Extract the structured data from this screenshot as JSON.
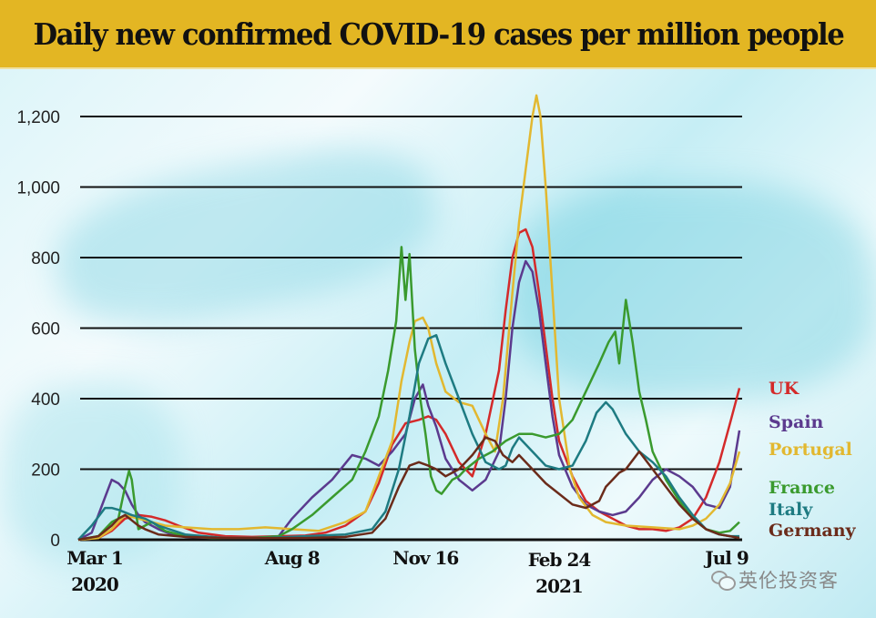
{
  "title": "Daily new confirmed COVID-19 cases per million people",
  "watermark": "英伦投资客",
  "chart_data": {
    "type": "line",
    "title": "Daily new confirmed COVID-19 cases per million people",
    "xlabel": "",
    "ylabel": "",
    "ylim": [
      0,
      1200
    ],
    "xlim": [
      0,
      495
    ],
    "x_unit": "days since Mar 1 2020",
    "y_ticks": [
      {
        "value": 0,
        "label": "0"
      },
      {
        "value": 200,
        "label": "200"
      },
      {
        "value": 400,
        "label": "400"
      },
      {
        "value": 600,
        "label": "600"
      },
      {
        "value": 800,
        "label": "800"
      },
      {
        "value": 1000,
        "label": "1,000"
      },
      {
        "value": 1200,
        "label": "1,200"
      }
    ],
    "x_ticks": [
      {
        "value": 0,
        "label": "Mar 1",
        "sub": "2020"
      },
      {
        "value": 160,
        "label": "Aug 8",
        "sub": ""
      },
      {
        "value": 260,
        "label": "Nov 16",
        "sub": ""
      },
      {
        "value": 360,
        "label": "Feb 24",
        "sub": "2021"
      },
      {
        "value": 495,
        "label": "Jul 9",
        "sub": ""
      }
    ],
    "grid": true,
    "legend_position": "right",
    "series": [
      {
        "name": "UK",
        "color": "#d42a2a",
        "x": [
          0,
          15,
          25,
          35,
          45,
          55,
          65,
          75,
          90,
          110,
          130,
          150,
          170,
          185,
          200,
          215,
          225,
          235,
          245,
          255,
          262,
          268,
          275,
          285,
          295,
          305,
          315,
          320,
          325,
          330,
          335,
          340,
          345,
          350,
          355,
          360,
          370,
          380,
          390,
          400,
          410,
          420,
          430,
          440,
          450,
          460,
          470,
          480,
          488,
          495
        ],
        "y": [
          0,
          5,
          25,
          60,
          70,
          65,
          55,
          40,
          20,
          10,
          8,
          10,
          12,
          20,
          40,
          80,
          160,
          270,
          330,
          340,
          350,
          340,
          300,
          220,
          180,
          300,
          480,
          650,
          800,
          870,
          880,
          830,
          700,
          550,
          400,
          280,
          180,
          110,
          80,
          60,
          40,
          30,
          30,
          25,
          35,
          60,
          120,
          220,
          330,
          430
        ]
      },
      {
        "name": "Spain",
        "color": "#5b3a8e",
        "x": [
          0,
          10,
          20,
          25,
          30,
          35,
          40,
          45,
          50,
          55,
          60,
          70,
          80,
          100,
          130,
          150,
          160,
          175,
          190,
          205,
          215,
          225,
          235,
          245,
          252,
          258,
          262,
          268,
          275,
          285,
          295,
          305,
          315,
          320,
          325,
          330,
          335,
          340,
          345,
          350,
          355,
          360,
          370,
          380,
          390,
          400,
          410,
          420,
          430,
          440,
          450,
          460,
          470,
          480,
          488,
          495
        ],
        "y": [
          0,
          20,
          120,
          170,
          160,
          140,
          100,
          70,
          50,
          40,
          30,
          15,
          8,
          5,
          5,
          10,
          60,
          120,
          170,
          240,
          230,
          210,
          250,
          300,
          400,
          440,
          380,
          320,
          230,
          170,
          140,
          170,
          250,
          400,
          600,
          730,
          790,
          760,
          650,
          500,
          350,
          240,
          150,
          100,
          80,
          70,
          80,
          120,
          170,
          200,
          180,
          150,
          100,
          90,
          150,
          310
        ]
      },
      {
        "name": "Portugal",
        "color": "#e2b830",
        "x": [
          0,
          15,
          25,
          35,
          45,
          55,
          65,
          80,
          100,
          120,
          140,
          160,
          180,
          200,
          215,
          225,
          235,
          242,
          248,
          252,
          258,
          262,
          268,
          275,
          285,
          295,
          305,
          312,
          318,
          325,
          330,
          335,
          340,
          343,
          346,
          350,
          355,
          360,
          368,
          375,
          385,
          395,
          410,
          430,
          450,
          460,
          470,
          480,
          488,
          495
        ],
        "y": [
          0,
          5,
          30,
          70,
          60,
          50,
          40,
          35,
          30,
          30,
          35,
          30,
          25,
          50,
          80,
          180,
          280,
          450,
          560,
          620,
          630,
          600,
          500,
          420,
          390,
          380,
          300,
          250,
          400,
          700,
          900,
          1050,
          1200,
          1260,
          1200,
          1000,
          700,
          400,
          200,
          120,
          70,
          50,
          40,
          35,
          30,
          40,
          60,
          100,
          160,
          250
        ]
      },
      {
        "name": "France",
        "color": "#3a9a2e",
        "x": [
          0,
          15,
          25,
          30,
          35,
          38,
          40,
          43,
          45,
          50,
          55,
          65,
          80,
          100,
          130,
          150,
          160,
          175,
          190,
          205,
          215,
          225,
          232,
          238,
          242,
          245,
          248,
          252,
          256,
          260,
          264,
          268,
          272,
          276,
          280,
          285,
          290,
          300,
          310,
          320,
          330,
          340,
          350,
          360,
          370,
          380,
          390,
          397,
          402,
          405,
          410,
          415,
          420,
          425,
          430,
          440,
          450,
          460,
          470,
          480,
          488,
          495
        ],
        "y": [
          0,
          10,
          50,
          60,
          150,
          195,
          170,
          80,
          30,
          40,
          50,
          25,
          10,
          5,
          5,
          10,
          30,
          70,
          120,
          170,
          250,
          350,
          480,
          620,
          830,
          680,
          810,
          540,
          400,
          300,
          180,
          140,
          130,
          150,
          170,
          180,
          200,
          230,
          250,
          280,
          300,
          300,
          290,
          300,
          340,
          420,
          500,
          560,
          590,
          500,
          680,
          560,
          420,
          340,
          250,
          170,
          110,
          60,
          30,
          20,
          25,
          50
        ]
      },
      {
        "name": "Italy",
        "color": "#1e7b82",
        "x": [
          0,
          10,
          20,
          25,
          30,
          40,
          50,
          60,
          80,
          110,
          140,
          170,
          200,
          220,
          230,
          240,
          248,
          255,
          262,
          268,
          275,
          285,
          295,
          305,
          315,
          320,
          325,
          330,
          340,
          350,
          360,
          370,
          380,
          388,
          395,
          400,
          410,
          420,
          430,
          440,
          450,
          460,
          470,
          480,
          488,
          495
        ],
        "y": [
          0,
          40,
          90,
          90,
          85,
          70,
          60,
          40,
          15,
          5,
          5,
          10,
          15,
          30,
          80,
          200,
          350,
          500,
          570,
          580,
          500,
          400,
          300,
          220,
          200,
          210,
          260,
          290,
          250,
          210,
          200,
          210,
          280,
          360,
          390,
          370,
          300,
          250,
          220,
          180,
          120,
          70,
          30,
          15,
          10,
          10
        ]
      },
      {
        "name": "Germany",
        "color": "#6b2b1a",
        "x": [
          0,
          15,
          25,
          30,
          35,
          40,
          45,
          50,
          60,
          80,
          110,
          140,
          170,
          200,
          220,
          230,
          240,
          248,
          255,
          262,
          268,
          275,
          285,
          295,
          305,
          312,
          318,
          325,
          330,
          340,
          350,
          360,
          370,
          380,
          390,
          395,
          400,
          405,
          410,
          420,
          430,
          440,
          450,
          460,
          470,
          480,
          488,
          495
        ],
        "y": [
          0,
          10,
          40,
          60,
          70,
          55,
          40,
          30,
          15,
          8,
          5,
          5,
          5,
          8,
          20,
          60,
          150,
          210,
          220,
          210,
          200,
          180,
          200,
          240,
          290,
          280,
          240,
          220,
          240,
          200,
          160,
          130,
          100,
          90,
          110,
          150,
          170,
          190,
          200,
          250,
          200,
          150,
          100,
          60,
          30,
          15,
          10,
          5
        ]
      }
    ]
  }
}
